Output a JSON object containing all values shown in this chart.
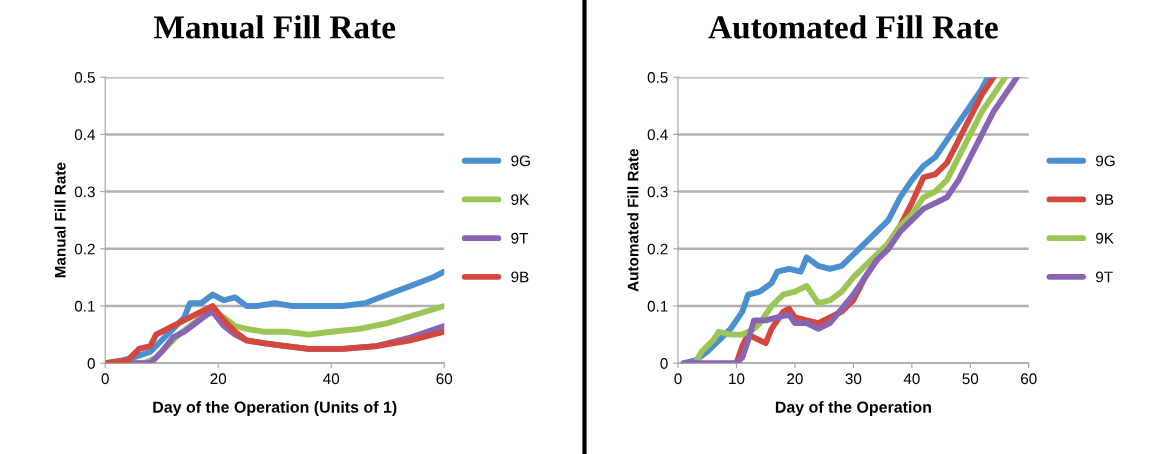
{
  "chart_data": [
    {
      "type": "line",
      "title": "Manual Fill Rate",
      "xlabel": "Day of the Operation (Units of 1)",
      "ylabel": "Manual Fill Rate",
      "xlim": [
        0,
        60
      ],
      "xticks": [
        0,
        20,
        40,
        60
      ],
      "ylim": [
        0,
        0.5
      ],
      "yticks": [
        0,
        0.1,
        0.2,
        0.3,
        0.4,
        0.5
      ],
      "grid": "y",
      "legend": "right",
      "series": [
        {
          "name": "9G",
          "color": "#4a8fd0",
          "x": [
            0,
            3,
            5,
            8,
            10,
            12,
            14,
            15,
            17,
            19,
            21,
            23,
            25,
            27,
            30,
            33,
            38,
            42,
            46,
            50,
            54,
            58,
            60
          ],
          "values": [
            0,
            0.005,
            0.01,
            0.02,
            0.04,
            0.06,
            0.08,
            0.105,
            0.105,
            0.12,
            0.11,
            0.115,
            0.1,
            0.1,
            0.105,
            0.1,
            0.1,
            0.1,
            0.105,
            0.12,
            0.135,
            0.15,
            0.16
          ]
        },
        {
          "name": "9K",
          "color": "#9bc555",
          "x": [
            0,
            7,
            9,
            11,
            13,
            15,
            17,
            19,
            21,
            23,
            25,
            28,
            32,
            36,
            40,
            45,
            50,
            55,
            60
          ],
          "values": [
            0,
            0,
            0.01,
            0.03,
            0.05,
            0.065,
            0.08,
            0.09,
            0.08,
            0.065,
            0.06,
            0.055,
            0.055,
            0.05,
            0.055,
            0.06,
            0.07,
            0.085,
            0.1
          ]
        },
        {
          "name": "9T",
          "color": "#8a64b4",
          "x": [
            0,
            8,
            10,
            12,
            14,
            16,
            18,
            19,
            21,
            23,
            25,
            28,
            32,
            36,
            42,
            48,
            54,
            60
          ],
          "values": [
            0,
            0,
            0.02,
            0.045,
            0.055,
            0.07,
            0.085,
            0.09,
            0.065,
            0.05,
            0.04,
            0.035,
            0.03,
            0.025,
            0.025,
            0.03,
            0.045,
            0.065
          ]
        },
        {
          "name": "9B",
          "color": "#d4473c",
          "x": [
            0,
            4,
            6,
            8,
            9,
            11,
            13,
            15,
            17,
            19,
            21,
            23,
            25,
            28,
            32,
            36,
            42,
            48,
            54,
            60
          ],
          "values": [
            0,
            0.005,
            0.025,
            0.03,
            0.05,
            0.06,
            0.07,
            0.08,
            0.09,
            0.1,
            0.075,
            0.055,
            0.04,
            0.035,
            0.03,
            0.025,
            0.025,
            0.03,
            0.04,
            0.055
          ]
        }
      ]
    },
    {
      "type": "line",
      "title": "Automated Fill Rate",
      "xlabel": "Day of the Operation",
      "ylabel": "Automated Fill Rate",
      "xlim": [
        0,
        60
      ],
      "xticks": [
        0,
        10,
        20,
        30,
        40,
        50,
        60
      ],
      "ylim": [
        0,
        0.5
      ],
      "yticks": [
        0,
        0.1,
        0.2,
        0.3,
        0.4,
        0.5
      ],
      "grid": "y",
      "legend": "right",
      "series": [
        {
          "name": "9G",
          "color": "#4a8fd0",
          "x": [
            1,
            3,
            5,
            7,
            9,
            11,
            12,
            14,
            16,
            17,
            19,
            21,
            22,
            24,
            26,
            28,
            30,
            32,
            34,
            36,
            38,
            40,
            42,
            44,
            46,
            48,
            50,
            52,
            53
          ],
          "values": [
            0,
            0.005,
            0.02,
            0.04,
            0.06,
            0.09,
            0.12,
            0.125,
            0.14,
            0.16,
            0.165,
            0.16,
            0.185,
            0.17,
            0.165,
            0.17,
            0.19,
            0.21,
            0.23,
            0.25,
            0.29,
            0.32,
            0.345,
            0.36,
            0.39,
            0.42,
            0.45,
            0.48,
            0.5
          ]
        },
        {
          "name": "9B",
          "color": "#d4473c",
          "x": [
            10,
            11,
            12,
            14,
            15,
            16,
            18,
            19,
            20,
            22,
            24,
            26,
            28,
            30,
            32,
            34,
            36,
            38,
            40,
            42,
            44,
            46,
            48,
            50,
            52,
            54
          ],
          "values": [
            0,
            0.03,
            0.05,
            0.04,
            0.035,
            0.06,
            0.09,
            0.095,
            0.08,
            0.075,
            0.07,
            0.08,
            0.09,
            0.11,
            0.15,
            0.18,
            0.21,
            0.24,
            0.28,
            0.325,
            0.33,
            0.35,
            0.39,
            0.43,
            0.47,
            0.5
          ]
        },
        {
          "name": "9K",
          "color": "#9bc555",
          "x": [
            3,
            4,
            6,
            7,
            9,
            11,
            13,
            14,
            16,
            18,
            20,
            22,
            24,
            26,
            28,
            30,
            32,
            34,
            36,
            38,
            40,
            42,
            44,
            46,
            48,
            50,
            52,
            54,
            56
          ],
          "values": [
            0,
            0.02,
            0.04,
            0.055,
            0.05,
            0.05,
            0.06,
            0.07,
            0.1,
            0.12,
            0.125,
            0.135,
            0.105,
            0.11,
            0.125,
            0.15,
            0.17,
            0.19,
            0.21,
            0.24,
            0.26,
            0.29,
            0.3,
            0.32,
            0.36,
            0.4,
            0.44,
            0.47,
            0.5
          ]
        },
        {
          "name": "9T",
          "color": "#8a64b4",
          "x": [
            1,
            10,
            11,
            12,
            13,
            15,
            17,
            19,
            20,
            22,
            24,
            26,
            28,
            30,
            32,
            34,
            36,
            38,
            40,
            42,
            44,
            46,
            48,
            50,
            52,
            54,
            56,
            58
          ],
          "values": [
            0,
            0,
            0.01,
            0.04,
            0.075,
            0.075,
            0.08,
            0.085,
            0.07,
            0.07,
            0.06,
            0.07,
            0.095,
            0.12,
            0.15,
            0.18,
            0.2,
            0.23,
            0.25,
            0.27,
            0.28,
            0.29,
            0.32,
            0.36,
            0.4,
            0.44,
            0.47,
            0.5
          ]
        }
      ]
    }
  ]
}
